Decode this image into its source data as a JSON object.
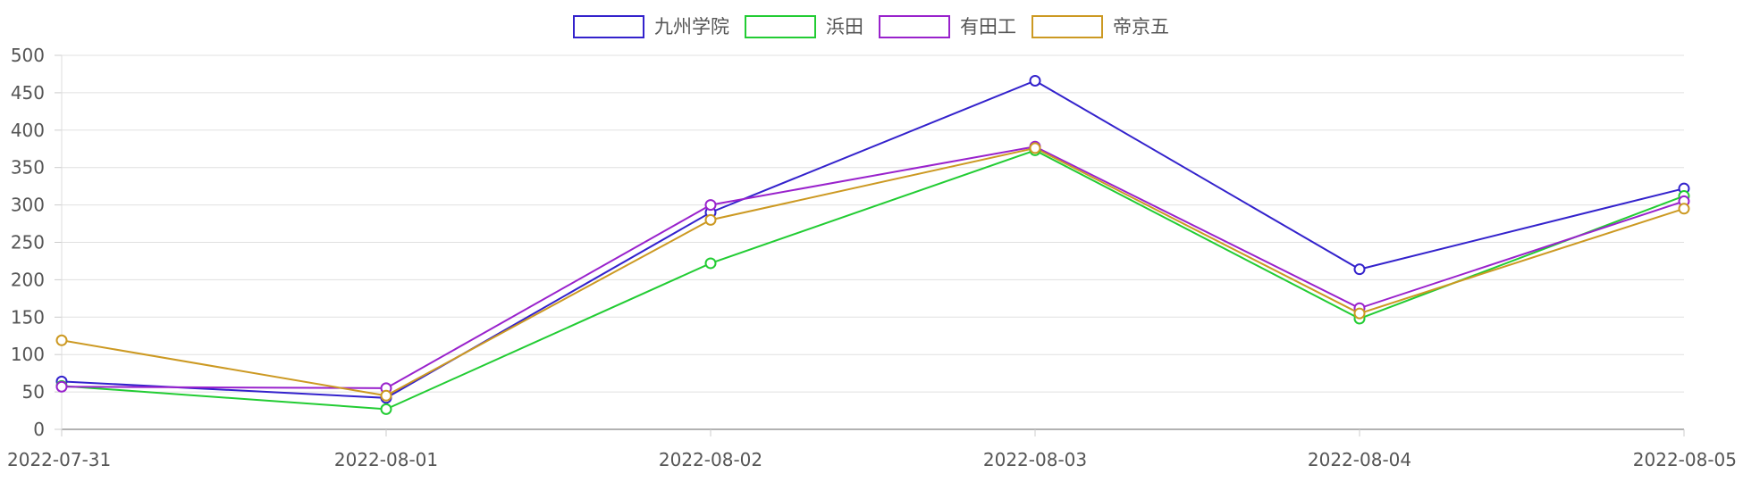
{
  "chart_data": {
    "type": "line",
    "title": "",
    "xlabel": "",
    "ylabel": "",
    "categories": [
      "2022-07-31",
      "2022-08-01",
      "2022-08-02",
      "2022-08-03",
      "2022-08-04",
      "2022-08-05"
    ],
    "ylim": [
      0,
      500
    ],
    "yticks": [
      0,
      50,
      100,
      150,
      200,
      250,
      300,
      350,
      400,
      450,
      500
    ],
    "grid": true,
    "legend_position": "top-center",
    "series": [
      {
        "name": "九州学院",
        "color": "#3322cc",
        "values": [
          64,
          42,
          290,
          466,
          214,
          322
        ]
      },
      {
        "name": "浜田",
        "color": "#22cc33",
        "values": [
          58,
          27,
          222,
          373,
          148,
          312
        ]
      },
      {
        "name": "有田工",
        "color": "#9922cc",
        "values": [
          57,
          55,
          300,
          378,
          162,
          305
        ]
      },
      {
        "name": "帝京五",
        "color": "#cc9922",
        "values": [
          119,
          45,
          280,
          376,
          155,
          295
        ]
      }
    ]
  }
}
